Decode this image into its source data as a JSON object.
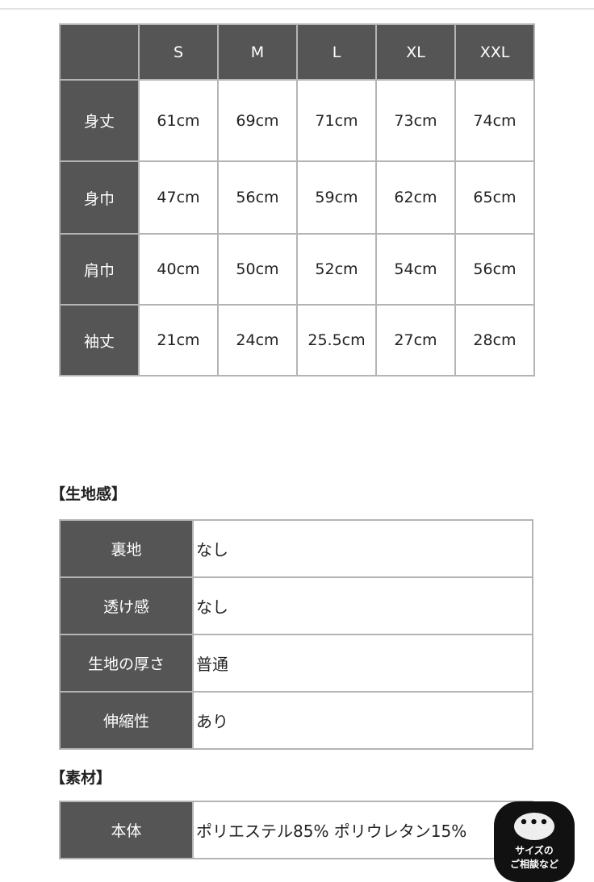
{
  "size_table": {
    "headers": [
      "",
      "S",
      "M",
      "L",
      "XL",
      "XXL"
    ],
    "rows": [
      {
        "label": "身丈",
        "values": [
          "61cm",
          "69cm",
          "71cm",
          "73cm",
          "74cm"
        ]
      },
      {
        "label": "身巾",
        "values": [
          "47cm",
          "56cm",
          "59cm",
          "62cm",
          "65cm"
        ]
      },
      {
        "label": "肩巾",
        "values": [
          "40cm",
          "50cm",
          "52cm",
          "54cm",
          "56cm"
        ]
      },
      {
        "label": "袖丈",
        "values": [
          "21cm",
          "24cm",
          "25.5cm",
          "27cm",
          "28cm"
        ]
      }
    ]
  },
  "fabric": {
    "heading": "【生地感】",
    "rows": [
      {
        "label": "裏地",
        "value": "なし"
      },
      {
        "label": "透け感",
        "value": "なし"
      },
      {
        "label": "生地の厚さ",
        "value": "普通"
      },
      {
        "label": "伸縮性",
        "value": "あり"
      }
    ]
  },
  "material": {
    "heading": "【素材】",
    "rows": [
      {
        "label": "本体",
        "value": "ポリエステル85% ポリウレタン15%"
      }
    ]
  },
  "chat_button": {
    "icon": "chat-bubble-icon",
    "dots": "•••",
    "line1": "サイズの",
    "line2": "ご相談など"
  },
  "colors": {
    "header_bg": "#555555",
    "border": "#b4b4b4"
  }
}
